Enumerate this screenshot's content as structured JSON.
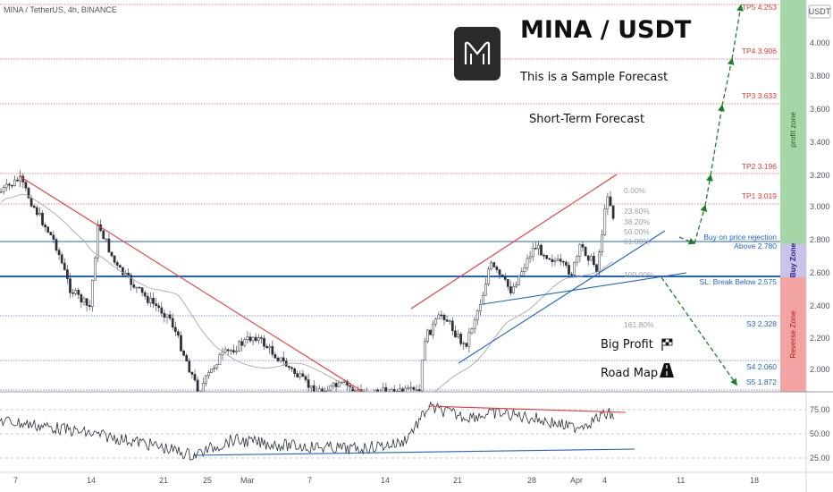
{
  "header": {
    "symbol_info": "MINA / TetherUS, 4h, BINANCE",
    "quote_badge": "USDT"
  },
  "overlay": {
    "logo_icon": "mina-logo-icon",
    "headline": "MINA / USDT",
    "subtitle": "This is a Sample Forecast",
    "forecast_label": "Short-Term Forecast",
    "big_profit": "Big Profit",
    "road_map": "Road Map",
    "flag_icon": "checkered-flag-icon",
    "road_icon": "road-icon"
  },
  "levels": {
    "tp5": "TP5 4.253",
    "tp4": "TP4 3.906",
    "tp3": "TP3 3.633",
    "tp2": "TP2 3.196",
    "tp1": "TP1 3.019",
    "buy_rejection": "Buy on price rejection",
    "above": "Above 2.780",
    "sl": "SL: Break Below 2.575",
    "s3": "S3 2.328",
    "s4": "S4 2.060",
    "s5": "S5 1.872"
  },
  "fib": {
    "f0": "0.00%",
    "f236": "23.60%",
    "f382": "38.20%",
    "f50": "50.00%",
    "f618": "61.80%",
    "f100": "100.00%",
    "f1618": "161.80%"
  },
  "zones": {
    "profit": "profit zone",
    "buy": "Buy Zone",
    "reverse": "Reverse Zone"
  },
  "colors": {
    "profit_zone": "#a5d6a7",
    "buy_zone": "#c5c0e6",
    "reverse_zone": "#f4a3a3",
    "target_red": "#e53935",
    "support_blue": "#1e63c8",
    "arrow_green": "#1b7f2a",
    "candle": "#2a2e39",
    "ma_gray": "#9e9e9e"
  },
  "chart_data": {
    "type": "candlestick",
    "price_axis": {
      "ticks": [
        "4.000",
        "3.800",
        "3.600",
        "3.400",
        "3.200",
        "3.000",
        "2.800",
        "2.600",
        "2.400",
        "2.200",
        "2.000"
      ],
      "range": [
        1.85,
        4.3
      ]
    },
    "rsi_axis": {
      "ticks": [
        "75.00",
        "50.00",
        "25.00"
      ],
      "range": [
        15,
        90
      ]
    },
    "time_axis": {
      "ticks": [
        "7",
        "14",
        "21",
        "25",
        "Mar",
        "7",
        "14",
        "21",
        "28",
        "Apr",
        "4",
        "11",
        "18"
      ]
    },
    "target_levels": [
      4.253,
      3.906,
      3.633,
      3.196,
      3.019,
      2.78,
      2.575,
      2.328,
      2.06,
      1.872
    ]
  }
}
